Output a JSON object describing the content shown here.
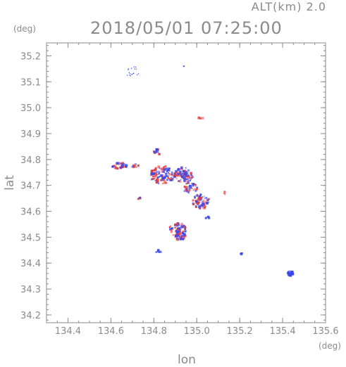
{
  "header": {
    "altitude_label": "ALT(km)  2.0",
    "timestamp": "2018/05/01  07:25:00"
  },
  "axes": {
    "y_unit": "(deg)",
    "x_unit": "(deg)",
    "xlabel": "lon",
    "ylabel": "lat",
    "xlim": [
      134.3,
      135.6
    ],
    "ylim": [
      34.17,
      35.25
    ],
    "xticks": [
      "134.4",
      "134.6",
      "134.8",
      "135.0",
      "135.2",
      "135.4",
      "135.6"
    ],
    "yticks": [
      "34.2",
      "34.3",
      "34.4",
      "34.5",
      "34.6",
      "34.7",
      "34.8",
      "34.9",
      "35.0",
      "35.1",
      "35.2"
    ]
  },
  "colors": {
    "frame": "#8a8a8a",
    "positive": "#e83a3a",
    "negative": "#3a46e8"
  },
  "echo_clusters": [
    {
      "lon": 134.7,
      "lat": 35.14,
      "rlon": 0.035,
      "rlat": 0.02,
      "n": 18,
      "sign": "neg",
      "sparse": true
    },
    {
      "lon": 135.02,
      "lat": 34.96,
      "rlon": 0.012,
      "rlat": 0.004,
      "n": 6,
      "sign": "pos"
    },
    {
      "lon": 134.82,
      "lat": 34.83,
      "rlon": 0.02,
      "rlat": 0.012,
      "n": 14,
      "sign": "mix"
    },
    {
      "lon": 134.64,
      "lat": 34.775,
      "rlon": 0.035,
      "rlat": 0.012,
      "n": 40,
      "sign": "mix"
    },
    {
      "lon": 134.71,
      "lat": 34.775,
      "rlon": 0.02,
      "rlat": 0.008,
      "n": 14,
      "sign": "mix"
    },
    {
      "lon": 134.84,
      "lat": 34.74,
      "rlon": 0.06,
      "rlat": 0.035,
      "n": 120,
      "sign": "mix"
    },
    {
      "lon": 134.94,
      "lat": 34.74,
      "rlon": 0.045,
      "rlat": 0.03,
      "n": 90,
      "sign": "mix"
    },
    {
      "lon": 134.97,
      "lat": 34.69,
      "rlon": 0.035,
      "rlat": 0.02,
      "n": 40,
      "sign": "mix"
    },
    {
      "lon": 135.02,
      "lat": 34.64,
      "rlon": 0.04,
      "rlat": 0.03,
      "n": 70,
      "sign": "mix"
    },
    {
      "lon": 135.13,
      "lat": 34.67,
      "rlon": 0.006,
      "rlat": 0.008,
      "n": 5,
      "sign": "pos"
    },
    {
      "lon": 134.73,
      "lat": 34.65,
      "rlon": 0.008,
      "rlat": 0.006,
      "n": 6,
      "sign": "mix"
    },
    {
      "lon": 135.05,
      "lat": 34.575,
      "rlon": 0.008,
      "rlat": 0.005,
      "n": 4,
      "sign": "neg"
    },
    {
      "lon": 134.91,
      "lat": 34.53,
      "rlon": 0.04,
      "rlat": 0.025,
      "n": 60,
      "sign": "mix"
    },
    {
      "lon": 134.92,
      "lat": 34.505,
      "rlon": 0.03,
      "rlat": 0.015,
      "n": 40,
      "sign": "mix"
    },
    {
      "lon": 134.82,
      "lat": 34.445,
      "rlon": 0.012,
      "rlat": 0.005,
      "n": 8,
      "sign": "neg"
    },
    {
      "lon": 135.21,
      "lat": 34.435,
      "rlon": 0.008,
      "rlat": 0.003,
      "n": 3,
      "sign": "neg"
    },
    {
      "lon": 135.435,
      "lat": 34.36,
      "rlon": 0.014,
      "rlat": 0.009,
      "n": 30,
      "sign": "neg"
    },
    {
      "lon": 134.94,
      "lat": 35.16,
      "rlon": 0.004,
      "rlat": 0.003,
      "n": 2,
      "sign": "neg"
    }
  ]
}
